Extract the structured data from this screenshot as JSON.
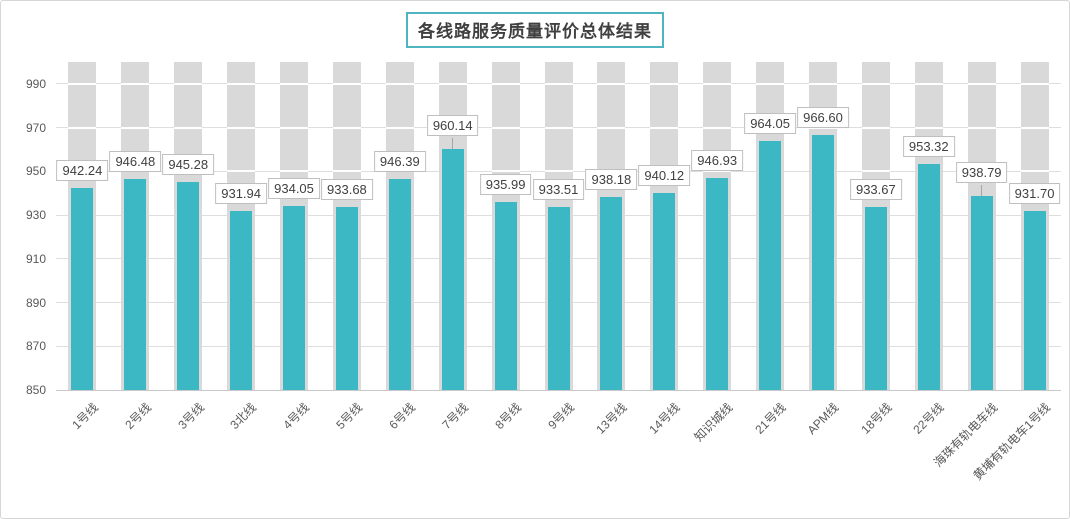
{
  "window": {
    "background": "#FFFFFF",
    "border_color": "#D6D6D6"
  },
  "chart_data": {
    "type": "bar",
    "title": "各线路服务质量评价总体结果",
    "categories": [
      "1号线",
      "2号线",
      "3号线",
      "3北线",
      "4号线",
      "5号线",
      "6号线",
      "7号线",
      "8号线",
      "9号线",
      "13号线",
      "14号线",
      "知识城线",
      "21号线",
      "APM线",
      "18号线",
      "22号线",
      "海珠有轨电车线",
      "黄埔有轨电车1号线"
    ],
    "values": [
      942.24,
      946.48,
      945.28,
      931.94,
      934.05,
      933.68,
      946.39,
      960.14,
      935.99,
      933.51,
      938.18,
      940.12,
      946.93,
      964.05,
      966.6,
      933.67,
      953.32,
      938.79,
      931.7
    ],
    "xlabel": "",
    "ylabel": "",
    "ylim": [
      850,
      1000
    ],
    "yticks": [
      850,
      870,
      890,
      910,
      930,
      950,
      970,
      990
    ],
    "grid": true,
    "legend": "none",
    "data_labels_visible": true,
    "raised_label_indices": [
      7,
      17
    ],
    "background_bar_value": 1000,
    "colors": {
      "bar": "#3CB8C5",
      "background_bar": "#D9D9D9",
      "gridline": "#DEDEDE",
      "axis_line": "#C9C9C9",
      "axis_text": "#595959",
      "label_text": "#404040",
      "label_border": "#BFBFBF",
      "label_background": "#FFFFFF",
      "title_border": "#4FB4C2",
      "title_text": "#404040"
    }
  }
}
